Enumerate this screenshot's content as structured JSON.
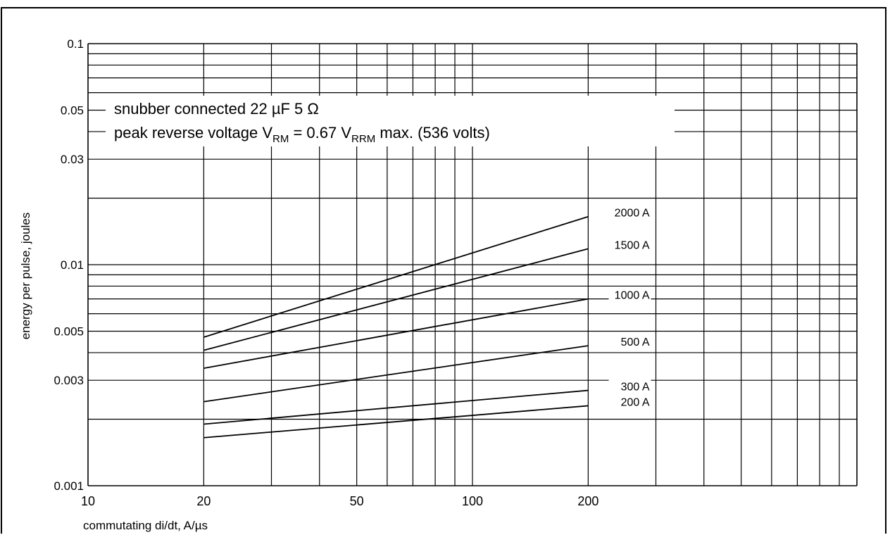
{
  "caption": "",
  "chart_data": {
    "type": "line",
    "title": "",
    "xlabel": "commutating di/dt, A/µs",
    "ylabel": "energy per pulse, joules",
    "x_scale": "log",
    "y_scale": "log",
    "xlim": [
      10,
      1000
    ],
    "ylim": [
      0.001,
      0.1
    ],
    "x_tick_labels": [
      "10",
      "20",
      "50",
      "100",
      "200"
    ],
    "x_tick_values": [
      10,
      20,
      50,
      100,
      200
    ],
    "y_tick_labels": [
      "0.1",
      "0.05",
      "0.03",
      "0.01",
      "0.005",
      "0.003",
      "0.001"
    ],
    "y_tick_values": [
      0.1,
      0.05,
      0.03,
      0.01,
      0.005,
      0.003,
      0.001
    ],
    "grid": true,
    "annotations": {
      "line1": "snubber connected 22 µF 5 Ω",
      "line2_prefix": "peak reverse voltage V",
      "line2_sub1": "RM",
      "line2_mid": " = 0.67 V",
      "line2_sub2": "RRM",
      "line2_suffix": " max. (536 volts)"
    },
    "series": [
      {
        "name": "2000 A",
        "x": [
          20,
          200
        ],
        "y": [
          0.0047,
          0.0165
        ]
      },
      {
        "name": "1500 A",
        "x": [
          20,
          200
        ],
        "y": [
          0.0041,
          0.0118
        ]
      },
      {
        "name": "1000 A",
        "x": [
          20,
          200
        ],
        "y": [
          0.0034,
          0.007
        ]
      },
      {
        "name": "500 A",
        "x": [
          20,
          200
        ],
        "y": [
          0.0024,
          0.0043
        ]
      },
      {
        "name": "300 A",
        "x": [
          20,
          200
        ],
        "y": [
          0.0019,
          0.0027
        ]
      },
      {
        "name": "200 A",
        "x": [
          20,
          200
        ],
        "y": [
          0.00165,
          0.0023
        ]
      }
    ]
  }
}
